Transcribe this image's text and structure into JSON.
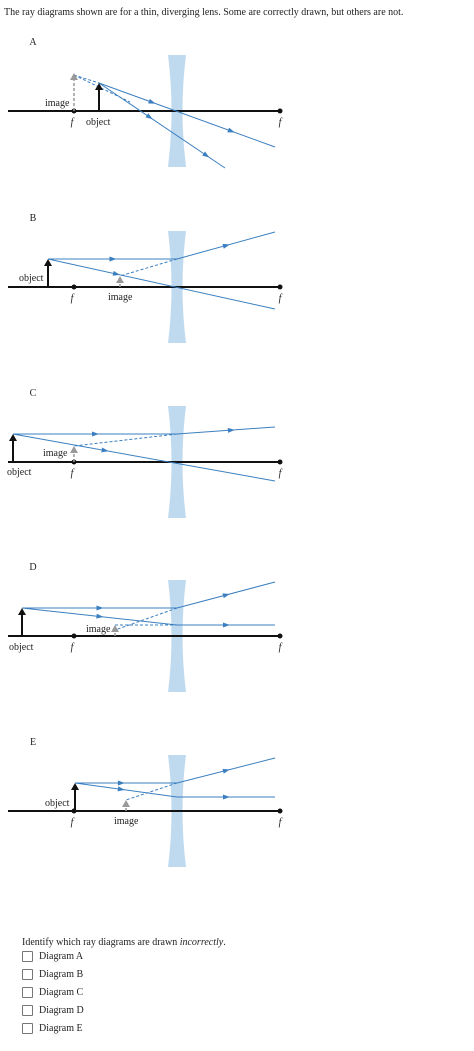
{
  "intro": "The ray diagrams shown are for a thin, diverging lens. Some are correctly drawn, but others are not.",
  "diagrams": [
    {
      "label": "A",
      "image": "image",
      "object": "object",
      "f_left": "f",
      "f_right": "f"
    },
    {
      "label": "B",
      "image": "image",
      "object": "object",
      "f_left": "f",
      "f_right": "f"
    },
    {
      "label": "C",
      "image": "image",
      "object": "object",
      "f_left": "f",
      "f_right": "f"
    },
    {
      "label": "D",
      "image": "image",
      "object": "object",
      "f_left": "f",
      "f_right": "f"
    },
    {
      "label": "E",
      "image": "image",
      "object": "object",
      "f_left": "f",
      "f_right": "f"
    }
  ],
  "question": {
    "text": "Identify which ray diagrams are drawn ",
    "emphasis": "incorrectly",
    "suffix": "."
  },
  "options": [
    "Diagram A",
    "Diagram B",
    "Diagram C",
    "Diagram D",
    "Diagram E"
  ]
}
